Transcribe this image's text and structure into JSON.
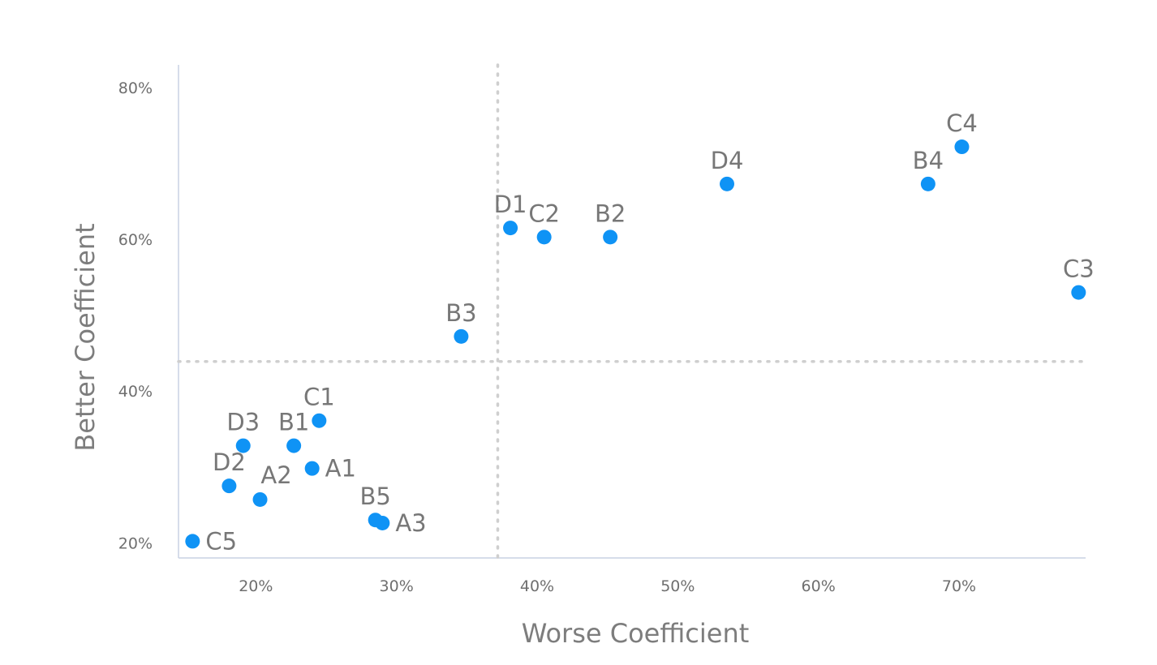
{
  "chart_data": {
    "type": "scatter",
    "xlabel": "Worse Coefficient",
    "ylabel": "Better Coefficient",
    "x_ticks": [
      "20%",
      "30%",
      "40%",
      "50%",
      "60%",
      "70%"
    ],
    "y_ticks": [
      "20%",
      "40%",
      "60%",
      "80%"
    ],
    "xlim": [
      0.145,
      0.79
    ],
    "ylim": [
      0.18,
      0.83
    ],
    "x_threshold": 0.372,
    "y_threshold": 0.439,
    "grid": false,
    "marker_color": "#0f93f5",
    "points": [
      {
        "label": "A1",
        "x": 0.24,
        "y": 0.298
      },
      {
        "label": "A2",
        "x": 0.203,
        "y": 0.257
      },
      {
        "label": "A3",
        "x": 0.29,
        "y": 0.226
      },
      {
        "label": "B1",
        "x": 0.227,
        "y": 0.328
      },
      {
        "label": "B2",
        "x": 0.452,
        "y": 0.603
      },
      {
        "label": "B3",
        "x": 0.346,
        "y": 0.472
      },
      {
        "label": "B4",
        "x": 0.678,
        "y": 0.673
      },
      {
        "label": "B5",
        "x": 0.285,
        "y": 0.23
      },
      {
        "label": "C1",
        "x": 0.245,
        "y": 0.361
      },
      {
        "label": "C2",
        "x": 0.405,
        "y": 0.603
      },
      {
        "label": "C3",
        "x": 0.785,
        "y": 0.53
      },
      {
        "label": "C4",
        "x": 0.702,
        "y": 0.722
      },
      {
        "label": "C5",
        "x": 0.155,
        "y": 0.202
      },
      {
        "label": "D1",
        "x": 0.381,
        "y": 0.615
      },
      {
        "label": "D2",
        "x": 0.181,
        "y": 0.275
      },
      {
        "label": "D3",
        "x": 0.191,
        "y": 0.328
      },
      {
        "label": "D4",
        "x": 0.535,
        "y": 0.673
      }
    ]
  }
}
